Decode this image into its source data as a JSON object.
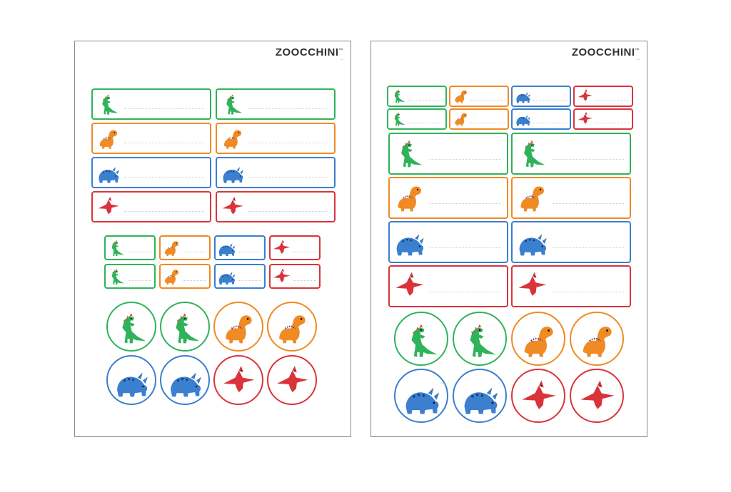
{
  "brand": {
    "name": "ZOOCCHINI",
    "tagline": "...",
    "mark": "™"
  },
  "colors": {
    "green": "#2fb35a",
    "orange": "#f08a24",
    "blue": "#3a7fd0",
    "red": "#d9343b"
  },
  "sheets": [
    {
      "id": "left",
      "label_rows": [
        "green",
        "orange",
        "blue",
        "red"
      ],
      "small_rows": 2,
      "circle_rows": [
        [
          "green",
          "green",
          "orange",
          "orange"
        ],
        [
          "blue",
          "blue",
          "red",
          "red"
        ]
      ]
    },
    {
      "id": "right",
      "label_rows": [
        "green",
        "orange",
        "blue",
        "red"
      ],
      "small_rows": 2,
      "circle_rows": [
        [
          "green",
          "green",
          "orange",
          "orange"
        ],
        [
          "blue",
          "blue",
          "red",
          "red"
        ]
      ]
    }
  ],
  "icons": {
    "green": "dinosaur-trex-icon",
    "orange": "dinosaur-longneck-icon",
    "blue": "dinosaur-triceratops-icon",
    "red": "pterodactyl-icon"
  }
}
